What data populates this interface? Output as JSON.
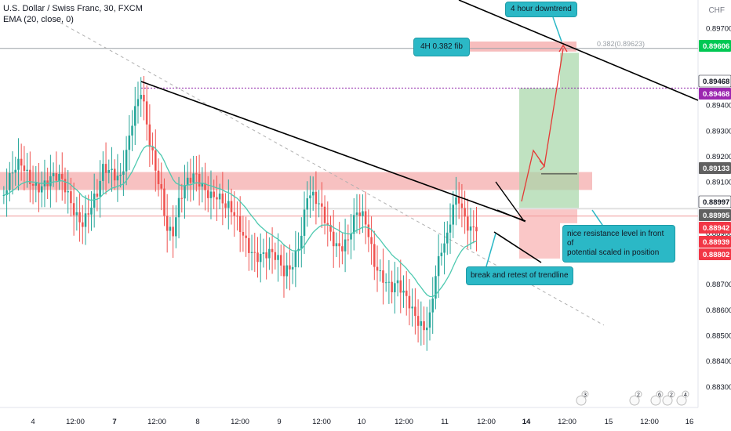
{
  "header": {
    "symbol_line": "U.S. Dollar / Swiss Franc, 30, FXCM",
    "indicator_line": "EMA (20, close, 0)",
    "currency": "CHF"
  },
  "annotations": {
    "downtrend": "4 hour downtrend",
    "fib_label": "4H 0.382 fib",
    "fib_level_text": "0.382(0.89623)",
    "break_retest": "break and retest of trendline",
    "resistance_note_line1": "nice resistance level in front of",
    "resistance_note_line2": "potential scaled in position"
  },
  "colors": {
    "up": "#26a69a",
    "down": "#ef5350",
    "ema": "#4ec9b0",
    "callout": "#2bb8c6",
    "resistance_zone": "#f4a7a7",
    "profit_zone": "#a5d6a7",
    "loss_zone": "#f8b4b4"
  },
  "chart_data": {
    "type": "candlestick",
    "symbol": "U.S. Dollar / Swiss Franc",
    "timeframe": "30",
    "source": "FXCM",
    "ylim": [
      0.8822,
      0.898
    ],
    "y_ticks": [
      "0.89700",
      "0.89500",
      "0.89400",
      "0.89300",
      "0.89200",
      "0.89100",
      "0.88900",
      "0.88700",
      "0.88600",
      "0.88500",
      "0.88400",
      "0.88300"
    ],
    "y_tick_values": [
      0.897,
      0.895,
      0.894,
      0.893,
      0.892,
      0.891,
      0.889,
      0.887,
      0.886,
      0.885,
      0.884,
      0.883
    ],
    "x_ticks": [
      "4",
      "12:00",
      "7",
      "12:00",
      "8",
      "12:00",
      "9",
      "12:00",
      "10",
      "12:00",
      "11",
      "12:00",
      "14",
      "12:00",
      "15",
      "12:00",
      "16"
    ],
    "price_labels": [
      {
        "value": "0.89606",
        "role": "green"
      },
      {
        "value": "0.89468",
        "role": "white"
      },
      {
        "value": "0.89468",
        "role": "purple"
      },
      {
        "value": "0.89133",
        "role": "dark"
      },
      {
        "value": "0.88997",
        "role": "white"
      },
      {
        "value": "0.88995",
        "role": "dark"
      },
      {
        "value": "0.88942",
        "role": "red"
      },
      {
        "value": "0.88939",
        "role": "red"
      },
      {
        "value": "0.88802",
        "role": "red"
      }
    ],
    "levels": {
      "fib_0382": 0.89623,
      "purple_line": 0.89468,
      "entry": 0.88997,
      "stop": 0.88802,
      "resistance_zone": [
        0.8907,
        0.8914
      ],
      "target_1": 0.89133,
      "target_2": 0.89468,
      "target_3": 0.89606
    },
    "close_path": [
      [
        0,
        0.8905
      ],
      [
        6,
        0.8915
      ],
      [
        12,
        0.8912
      ],
      [
        20,
        0.8907
      ],
      [
        27,
        0.8898
      ],
      [
        32,
        0.8902
      ],
      [
        34,
        0.8911
      ],
      [
        40,
        0.8916
      ],
      [
        44,
        0.8935
      ],
      [
        47,
        0.8942
      ],
      [
        50,
        0.8922
      ],
      [
        54,
        0.8909
      ],
      [
        56,
        0.8896
      ],
      [
        58,
        0.8893
      ],
      [
        60,
        0.8901
      ],
      [
        63,
        0.8906
      ],
      [
        66,
        0.8911
      ],
      [
        70,
        0.891
      ],
      [
        73,
        0.8907
      ],
      [
        76,
        0.8898
      ],
      [
        80,
        0.8892
      ],
      [
        84,
        0.8888
      ],
      [
        88,
        0.8883
      ],
      [
        92,
        0.8878
      ],
      [
        96,
        0.8874
      ],
      [
        99,
        0.8882
      ],
      [
        102,
        0.8893
      ],
      [
        104,
        0.8905
      ],
      [
        106,
        0.8901
      ],
      [
        108,
        0.8897
      ],
      [
        111,
        0.8892
      ],
      [
        114,
        0.8889
      ],
      [
        118,
        0.8889
      ],
      [
        121,
        0.8895
      ],
      [
        124,
        0.8891
      ],
      [
        127,
        0.888
      ],
      [
        130,
        0.8877
      ],
      [
        133,
        0.887
      ],
      [
        135,
        0.8868
      ],
      [
        137,
        0.8862
      ],
      [
        140,
        0.8858
      ],
      [
        144,
        0.8857
      ],
      [
        146,
        0.8861
      ],
      [
        148,
        0.8875
      ],
      [
        150,
        0.8881
      ],
      [
        152,
        0.8884
      ],
      [
        154,
        0.8898
      ],
      [
        156,
        0.8904
      ],
      [
        158,
        0.8899
      ],
      [
        160,
        0.8896
      ],
      [
        162,
        0.8895
      ]
    ]
  }
}
